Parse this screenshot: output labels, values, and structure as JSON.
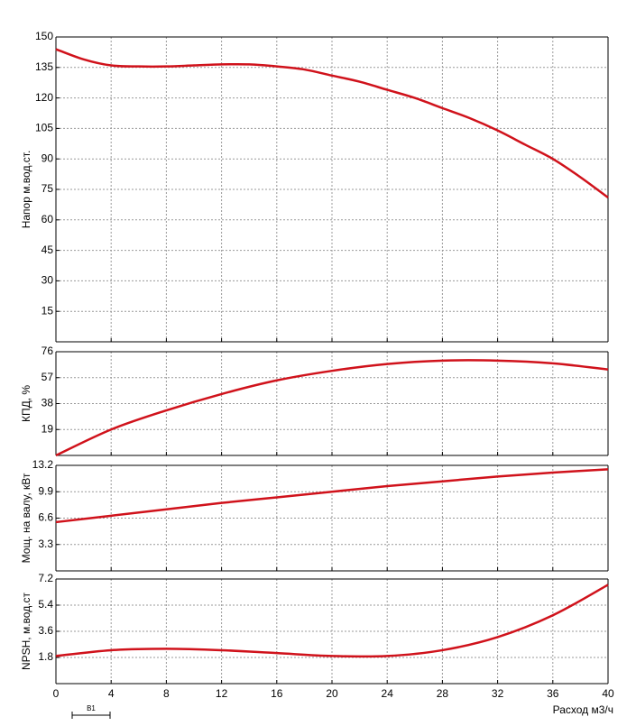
{
  "chart_data": [
    {
      "type": "line",
      "ylabel": "Напор м.вод.ст.",
      "xlim": [
        0,
        40
      ],
      "ylim": [
        0,
        150
      ],
      "yticks": [
        15,
        30,
        45,
        60,
        75,
        90,
        105,
        120,
        135,
        150
      ],
      "grid": true,
      "x": [
        0,
        2,
        4,
        6,
        8,
        10,
        12,
        14,
        16,
        18,
        20,
        22,
        24,
        26,
        28,
        30,
        32,
        34,
        36,
        38,
        40
      ],
      "series": [
        {
          "color": "#d0121b",
          "values": [
            144,
            139,
            136,
            135.5,
            135.5,
            136,
            136.5,
            136.5,
            135.5,
            134,
            131,
            128,
            124,
            120,
            115,
            110,
            104,
            97,
            90,
            81,
            71
          ]
        }
      ]
    },
    {
      "type": "line",
      "ylabel": "КПД, %",
      "xlim": [
        0,
        40
      ],
      "ylim": [
        0,
        76
      ],
      "yticks": [
        19,
        38,
        57,
        76
      ],
      "grid": true,
      "x": [
        0,
        4,
        8,
        12,
        16,
        20,
        24,
        28,
        32,
        36,
        40
      ],
      "series": [
        {
          "color": "#d0121b",
          "values": [
            0,
            19,
            33,
            45,
            55,
            62,
            67,
            69.5,
            69.5,
            67.5,
            63
          ]
        }
      ]
    },
    {
      "type": "line",
      "ylabel": "Мощ. на валу, кВт",
      "xlim": [
        0,
        40
      ],
      "ylim": [
        0,
        13.2
      ],
      "yticks": [
        3.3,
        6.6,
        9.9,
        13.2
      ],
      "grid": true,
      "x": [
        0,
        4,
        8,
        12,
        16,
        20,
        24,
        28,
        32,
        36,
        40
      ],
      "series": [
        {
          "color": "#d0121b",
          "values": [
            6.1,
            6.9,
            7.7,
            8.5,
            9.2,
            9.9,
            10.6,
            11.2,
            11.8,
            12.3,
            12.7
          ]
        }
      ]
    },
    {
      "type": "line",
      "ylabel": "NPSH, м.вод.ст",
      "xlabel": "Расход м3/ч",
      "xlim": [
        0,
        40
      ],
      "ylim": [
        0,
        7.2
      ],
      "yticks": [
        1.8,
        3.6,
        5.4,
        7.2
      ],
      "grid": true,
      "xticks": [
        0,
        4,
        8,
        12,
        16,
        20,
        24,
        28,
        32,
        36,
        40
      ],
      "annotation": "B1",
      "x": [
        0,
        4,
        8,
        12,
        16,
        20,
        24,
        28,
        32,
        36,
        40
      ],
      "series": [
        {
          "color": "#d0121b",
          "values": [
            1.9,
            2.3,
            2.4,
            2.3,
            2.1,
            1.9,
            1.9,
            2.3,
            3.2,
            4.7,
            6.8
          ]
        }
      ]
    }
  ]
}
